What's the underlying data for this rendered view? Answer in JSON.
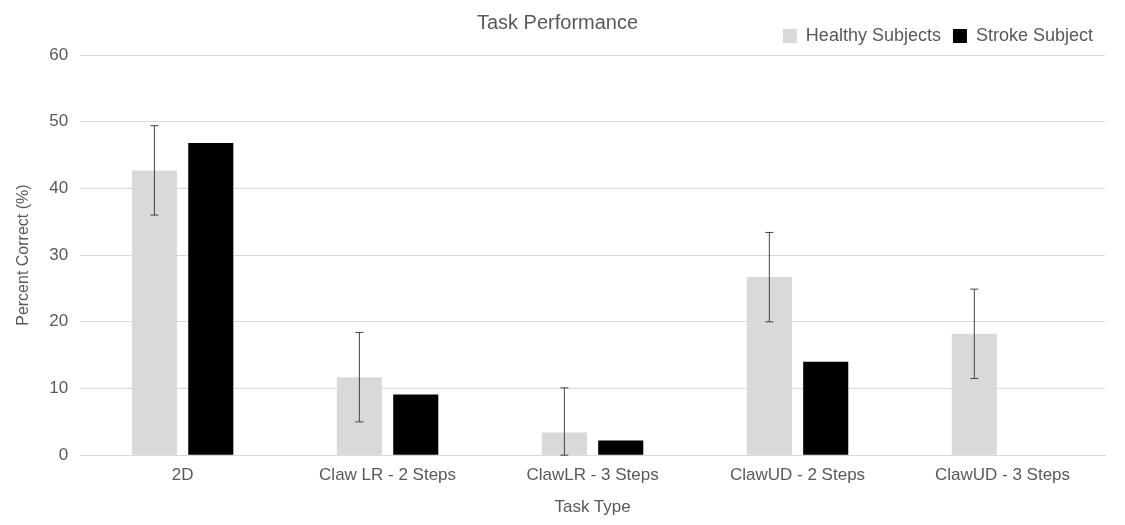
{
  "chart_data": {
    "type": "bar",
    "title": "Task Performance",
    "xlabel": "Task Type",
    "ylabel": "Percent Correct (%)",
    "categories": [
      "2D",
      "Claw LR - 2 Steps",
      "ClawLR - 3 Steps",
      "ClawUD - 2 Steps",
      "ClawUD - 3 Steps"
    ],
    "series": [
      {
        "name": "Healthy Subjects",
        "color": "#d9d9d9",
        "values": [
          42.7,
          11.7,
          3.4,
          26.7,
          18.2
        ],
        "errors": [
          6.7,
          6.7,
          [
            0,
            10.1
          ],
          6.7,
          6.7
        ]
      },
      {
        "name": "Stroke Subject",
        "color": "#000000",
        "values": [
          46.8,
          9.1,
          2.2,
          14.0,
          0
        ]
      }
    ],
    "ylim": [
      0,
      60
    ],
    "yticks": [
      0,
      10,
      20,
      30,
      40,
      50,
      60
    ],
    "grid": "y",
    "legend": "top right"
  }
}
